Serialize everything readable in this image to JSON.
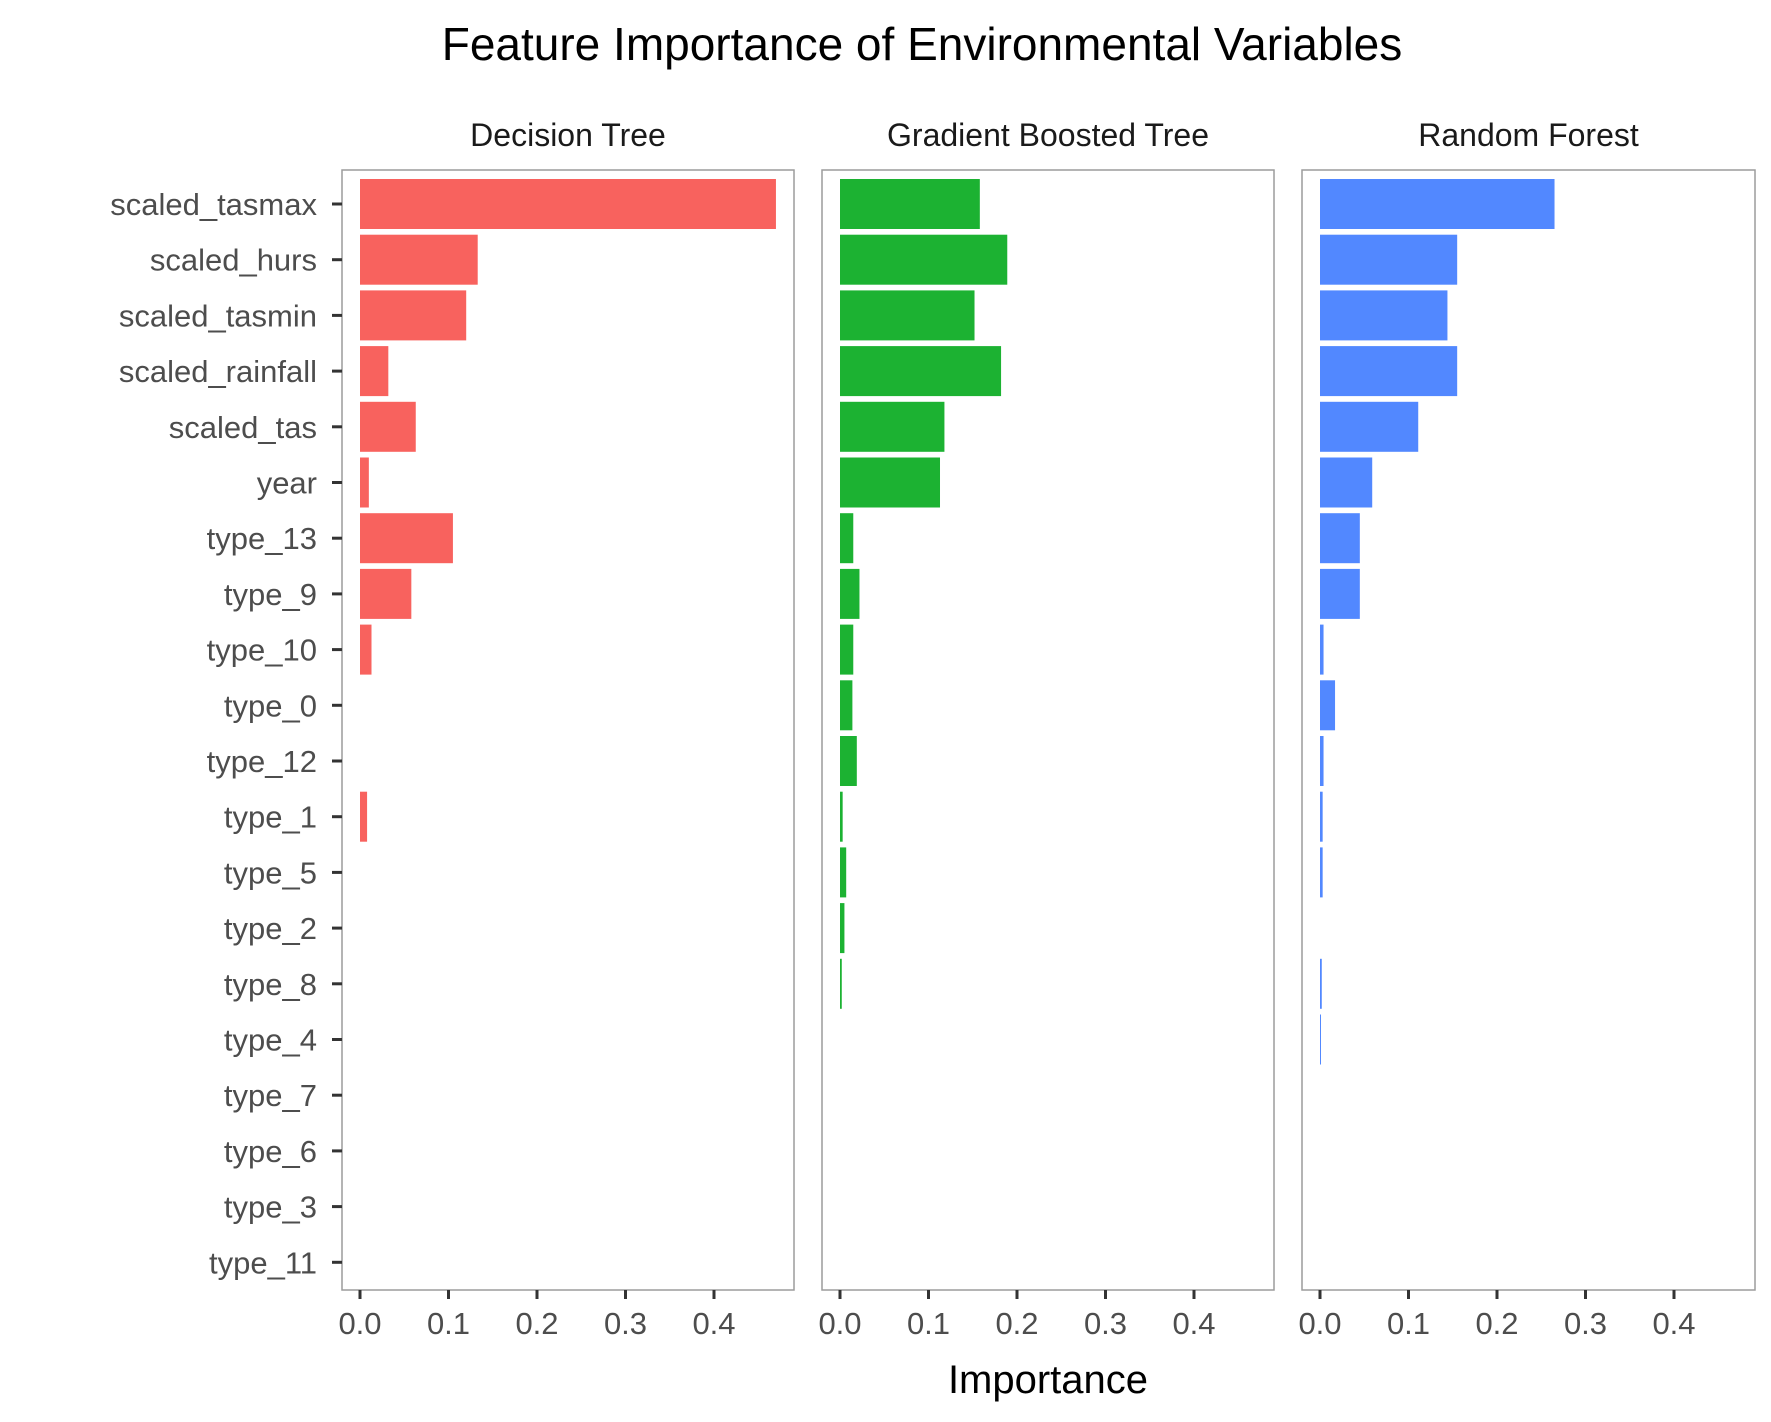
{
  "chart_data": {
    "type": "bar",
    "orientation": "horizontal",
    "title": "Feature Importance of Environmental Variables",
    "xlabel": "Importance",
    "ylabel": "",
    "xlim": [
      0,
      0.49
    ],
    "xticks": [
      "0.0",
      "0.1",
      "0.2",
      "0.3",
      "0.4"
    ],
    "xtick_values": [
      0,
      0.1,
      0.2,
      0.3,
      0.4
    ],
    "grid": false,
    "legend": "none",
    "categories": [
      "scaled_tasmax",
      "scaled_hurs",
      "scaled_tasmin",
      "scaled_rainfall",
      "scaled_tas",
      "year",
      "type_13",
      "type_9",
      "type_10",
      "type_0",
      "type_12",
      "type_1",
      "type_5",
      "type_2",
      "type_8",
      "type_4",
      "type_7",
      "type_6",
      "type_3",
      "type_11"
    ],
    "series": [
      {
        "name": "Decision Tree",
        "color": "#f8625e",
        "values": [
          0.47,
          0.133,
          0.12,
          0.032,
          0.063,
          0.01,
          0.105,
          0.058,
          0.013,
          0,
          0,
          0.008,
          0,
          0,
          0,
          0,
          0,
          0,
          0,
          0
        ]
      },
      {
        "name": "Gradient Boosted Tree",
        "color": "#1cb232",
        "values": [
          0.158,
          0.189,
          0.152,
          0.182,
          0.118,
          0.113,
          0.015,
          0.022,
          0.015,
          0.014,
          0.019,
          0.003,
          0.007,
          0.005,
          0.002,
          0,
          0,
          0,
          0,
          0
        ]
      },
      {
        "name": "Random Forest",
        "color": "#5288ff",
        "values": [
          0.265,
          0.155,
          0.144,
          0.155,
          0.111,
          0.059,
          0.045,
          0.045,
          0.004,
          0.017,
          0.004,
          0.003,
          0.003,
          0,
          0.002,
          0.001,
          0,
          0,
          0,
          0
        ]
      }
    ]
  }
}
